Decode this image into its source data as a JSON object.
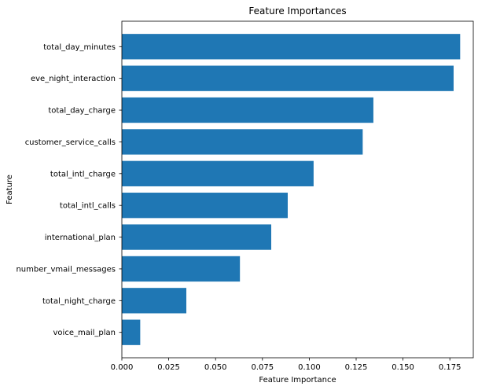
{
  "chart_data": {
    "type": "bar",
    "orientation": "horizontal",
    "title": "Feature Importances",
    "xlabel": "Feature Importance",
    "ylabel": "Feature",
    "xlim": [
      0,
      0.1875
    ],
    "xticks": [
      0.0,
      0.025,
      0.05,
      0.075,
      0.1,
      0.125,
      0.15,
      0.175
    ],
    "xtick_labels": [
      "0.000",
      "0.025",
      "0.050",
      "0.075",
      "0.100",
      "0.125",
      "0.150",
      "0.175"
    ],
    "grid": false,
    "bar_color": "#1f77b4",
    "categories": [
      "total_day_minutes",
      "eve_night_interaction",
      "total_day_charge",
      "customer_service_calls",
      "total_intl_charge",
      "total_intl_calls",
      "international_plan",
      "number_vmail_messages",
      "total_night_charge",
      "voice_mail_plan"
    ],
    "values": [
      0.1805,
      0.177,
      0.1342,
      0.1285,
      0.1023,
      0.0885,
      0.0797,
      0.063,
      0.0344,
      0.0098
    ]
  }
}
